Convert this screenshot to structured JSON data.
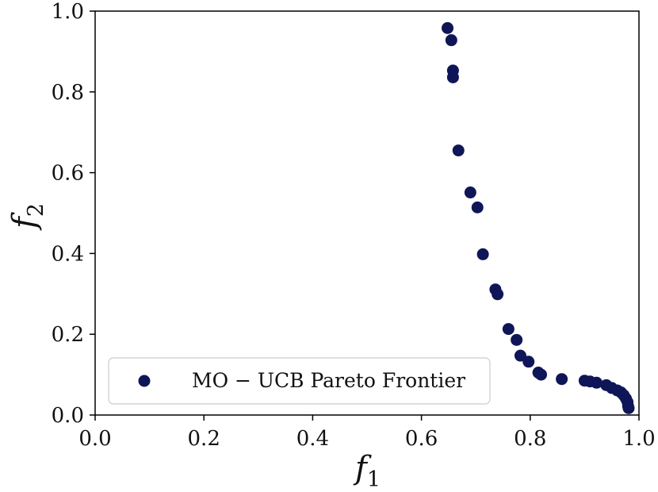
{
  "chart_data": {
    "type": "scatter",
    "xlabel": "f",
    "xlabel_sub": "1",
    "ylabel": "f",
    "ylabel_sub": "2",
    "xlim": [
      0.0,
      1.0
    ],
    "ylim": [
      0.0,
      1.0
    ],
    "xticks": [
      "0.0",
      "0.2",
      "0.4",
      "0.6",
      "0.8",
      "1.0"
    ],
    "yticks": [
      "0.0",
      "0.2",
      "0.4",
      "0.6",
      "0.8",
      "1.0"
    ],
    "grid": false,
    "legend_position": "lower-left",
    "series": [
      {
        "name": "MO − UCB Pareto Frontier",
        "color": "#0f1657",
        "points": [
          [
            0.648,
            0.958
          ],
          [
            0.655,
            0.928
          ],
          [
            0.658,
            0.853
          ],
          [
            0.658,
            0.836
          ],
          [
            0.668,
            0.655
          ],
          [
            0.69,
            0.551
          ],
          [
            0.703,
            0.514
          ],
          [
            0.713,
            0.398
          ],
          [
            0.736,
            0.311
          ],
          [
            0.74,
            0.299
          ],
          [
            0.76,
            0.213
          ],
          [
            0.775,
            0.186
          ],
          [
            0.782,
            0.147
          ],
          [
            0.797,
            0.132
          ],
          [
            0.815,
            0.105
          ],
          [
            0.82,
            0.1
          ],
          [
            0.858,
            0.089
          ],
          [
            0.9,
            0.085
          ],
          [
            0.91,
            0.083
          ],
          [
            0.922,
            0.08
          ],
          [
            0.94,
            0.074
          ],
          [
            0.95,
            0.067
          ],
          [
            0.96,
            0.061
          ],
          [
            0.967,
            0.056
          ],
          [
            0.972,
            0.049
          ],
          [
            0.976,
            0.041
          ],
          [
            0.979,
            0.032
          ],
          [
            0.98,
            0.022
          ],
          [
            0.981,
            0.017
          ]
        ]
      }
    ]
  }
}
